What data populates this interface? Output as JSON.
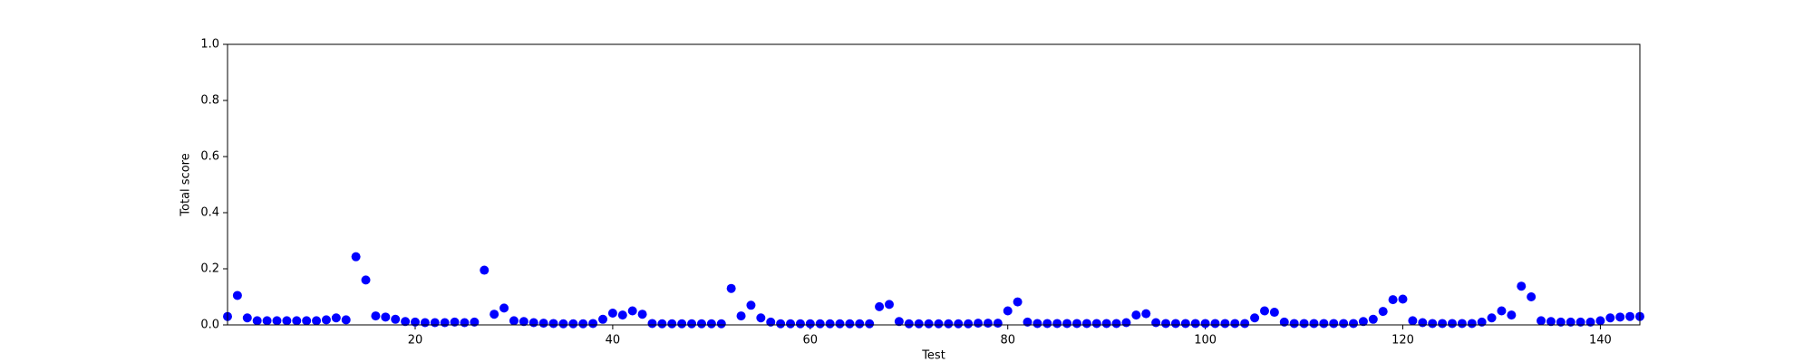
{
  "chart_data": {
    "type": "scatter",
    "x_label": "Test",
    "y_label": "Total score",
    "color": "#0000ff",
    "x": [
      1,
      2,
      3,
      4,
      5,
      6,
      7,
      8,
      9,
      10,
      11,
      12,
      13,
      14,
      15,
      16,
      17,
      18,
      19,
      20,
      21,
      22,
      23,
      24,
      25,
      26,
      27,
      28,
      29,
      30,
      31,
      32,
      33,
      34,
      35,
      36,
      37,
      38,
      39,
      40,
      41,
      42,
      43,
      44,
      45,
      46,
      47,
      48,
      49,
      50,
      51,
      52,
      53,
      54,
      55,
      56,
      57,
      58,
      59,
      60,
      61,
      62,
      63,
      64,
      65,
      66,
      67,
      68,
      69,
      70,
      71,
      72,
      73,
      74,
      75,
      76,
      77,
      78,
      79,
      80,
      81,
      82,
      83,
      84,
      85,
      86,
      87,
      88,
      89,
      90,
      91,
      92,
      93,
      94,
      95,
      96,
      97,
      98,
      99,
      100,
      101,
      102,
      103,
      104,
      105,
      106,
      107,
      108,
      109,
      110,
      111,
      112,
      113,
      114,
      115,
      116,
      117,
      118,
      119,
      120,
      121,
      122,
      123,
      124,
      125,
      126,
      127,
      128,
      129,
      130,
      131,
      132,
      133,
      134,
      135,
      136,
      137,
      138,
      139,
      140,
      141,
      142,
      143,
      144
    ],
    "values": [
      0.03,
      0.105,
      0.025,
      0.015,
      0.015,
      0.015,
      0.015,
      0.015,
      0.015,
      0.015,
      0.018,
      0.025,
      0.018,
      0.243,
      0.16,
      0.032,
      0.028,
      0.02,
      0.012,
      0.01,
      0.008,
      0.008,
      0.008,
      0.01,
      0.008,
      0.01,
      0.195,
      0.038,
      0.06,
      0.015,
      0.012,
      0.008,
      0.006,
      0.005,
      0.004,
      0.004,
      0.004,
      0.005,
      0.02,
      0.042,
      0.035,
      0.05,
      0.038,
      0.005,
      0.004,
      0.004,
      0.004,
      0.004,
      0.004,
      0.004,
      0.004,
      0.13,
      0.032,
      0.07,
      0.025,
      0.01,
      0.004,
      0.004,
      0.004,
      0.004,
      0.004,
      0.004,
      0.004,
      0.004,
      0.004,
      0.004,
      0.065,
      0.073,
      0.012,
      0.004,
      0.004,
      0.004,
      0.004,
      0.004,
      0.004,
      0.004,
      0.006,
      0.006,
      0.006,
      0.05,
      0.082,
      0.01,
      0.005,
      0.005,
      0.005,
      0.005,
      0.005,
      0.005,
      0.005,
      0.005,
      0.005,
      0.008,
      0.035,
      0.04,
      0.008,
      0.005,
      0.005,
      0.005,
      0.005,
      0.005,
      0.005,
      0.005,
      0.005,
      0.005,
      0.025,
      0.05,
      0.045,
      0.01,
      0.005,
      0.005,
      0.005,
      0.005,
      0.005,
      0.005,
      0.005,
      0.012,
      0.02,
      0.048,
      0.09,
      0.092,
      0.015,
      0.008,
      0.005,
      0.005,
      0.005,
      0.005,
      0.005,
      0.01,
      0.025,
      0.05,
      0.035,
      0.138,
      0.1,
      0.015,
      0.012,
      0.01,
      0.01,
      0.01,
      0.01,
      0.015,
      0.025,
      0.028,
      0.03,
      0.03
    ],
    "xlim": [
      1,
      144
    ],
    "xticks": [
      20,
      40,
      60,
      80,
      100,
      120,
      140
    ],
    "ylim": [
      0,
      1
    ],
    "yticks": [
      {
        "value": 0,
        "label": "0.0"
      },
      {
        "value": 0.2,
        "label": "0.2"
      },
      {
        "value": 0.4,
        "label": "0.4"
      },
      {
        "value": 0.6,
        "label": "0.6"
      },
      {
        "value": 0.8,
        "label": "0.8"
      },
      {
        "value": 1,
        "label": "1.0"
      }
    ]
  }
}
